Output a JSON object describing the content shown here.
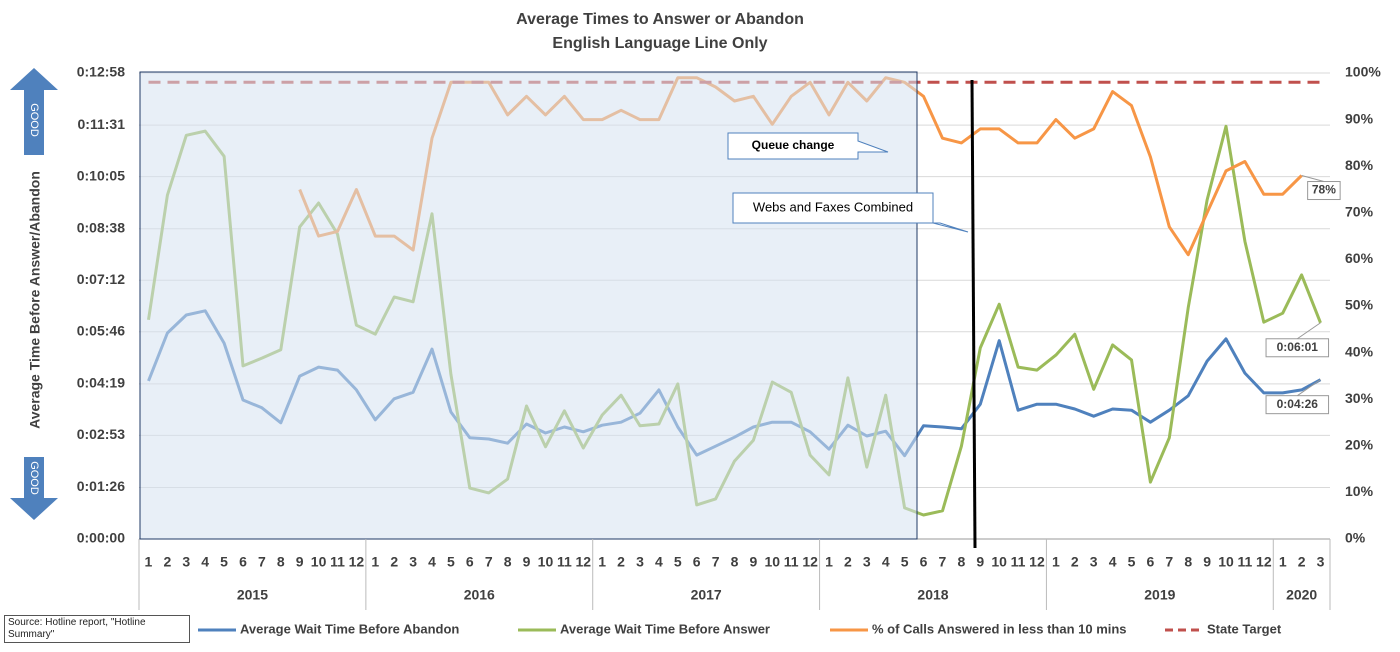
{
  "chart_data": {
    "type": "line",
    "title": "Average Times to Answer or Abandon",
    "subtitle": "English Language Line Only",
    "y_label": "Average Time Before Answer/Abandon",
    "indicator_labels": [
      "GOOD",
      "GOOD"
    ],
    "annotations": [
      "Queue change",
      "Webs and Faxes Combined"
    ],
    "source": "Source: Hotline report, \"Hotline Summary\"",
    "categories": [
      "1",
      "2",
      "3",
      "4",
      "5",
      "6",
      "7",
      "8",
      "9",
      "10",
      "11",
      "12",
      "1",
      "2",
      "3",
      "4",
      "5",
      "6",
      "7",
      "8",
      "9",
      "10",
      "11",
      "12",
      "1",
      "2",
      "3",
      "4",
      "5",
      "6",
      "7",
      "8",
      "9",
      "10",
      "11",
      "12",
      "1",
      "2",
      "3",
      "4",
      "5",
      "6",
      "7",
      "8",
      "9",
      "10",
      "11",
      "12",
      "1",
      "2",
      "3",
      "4",
      "5",
      "6",
      "7",
      "8",
      "9",
      "10",
      "11",
      "12",
      "1",
      "2",
      "3"
    ],
    "year_groups": [
      {
        "label": "2015",
        "span": 12
      },
      {
        "label": "2016",
        "span": 12
      },
      {
        "label": "2017",
        "span": 12
      },
      {
        "label": "2018",
        "span": 12
      },
      {
        "label": "2019",
        "span": 12
      },
      {
        "label": "2020",
        "span": 3
      }
    ],
    "ylim": [
      0,
      778
    ],
    "yticks": [
      {
        "value": 0,
        "label": "0:00:00"
      },
      {
        "value": 86,
        "label": "0:01:26"
      },
      {
        "value": 173,
        "label": "0:02:53"
      },
      {
        "value": 259,
        "label": "0:04:19"
      },
      {
        "value": 346,
        "label": "0:05:46"
      },
      {
        "value": 432,
        "label": "0:07:12"
      },
      {
        "value": 518,
        "label": "0:08:38"
      },
      {
        "value": 605,
        "label": "0:10:05"
      },
      {
        "value": 691,
        "label": "0:11:31"
      },
      {
        "value": 778,
        "label": "0:12:58"
      }
    ],
    "y2lim": [
      0,
      100
    ],
    "y2ticks": [
      {
        "value": 0,
        "label": "0%"
      },
      {
        "value": 10,
        "label": "10%"
      },
      {
        "value": 20,
        "label": "20%"
      },
      {
        "value": 30,
        "label": "30%"
      },
      {
        "value": 40,
        "label": "40%"
      },
      {
        "value": 50,
        "label": "50%"
      },
      {
        "value": 60,
        "label": "60%"
      },
      {
        "value": 70,
        "label": "70%"
      },
      {
        "value": 80,
        "label": "80%"
      },
      {
        "value": 90,
        "label": "90%"
      },
      {
        "value": 100,
        "label": "100%"
      }
    ],
    "grid": true,
    "legend": "bottom",
    "series": [
      {
        "name": "Average Wait Time Before Abandon",
        "color": "#4f81bd",
        "values": [
          264,
          344,
          374,
          381,
          327,
          232,
          219,
          194,
          272,
          287,
          282,
          249,
          199,
          234,
          245,
          317,
          212,
          169,
          167,
          160,
          192,
          177,
          187,
          179,
          190,
          195,
          210,
          249,
          187,
          140,
          155,
          170,
          187,
          195,
          195,
          179,
          150,
          190,
          172,
          180,
          139,
          189,
          187,
          184,
          225,
          331,
          215,
          225,
          225,
          217,
          205,
          217,
          215,
          195,
          215,
          239,
          297,
          334,
          277,
          244,
          244,
          249,
          266
        ],
        "value_labels": [
          null,
          null,
          null,
          null,
          null,
          null,
          null,
          null,
          null,
          null,
          null,
          null,
          null,
          null,
          null,
          null,
          null,
          null,
          null,
          null,
          null,
          null,
          null,
          null,
          null,
          null,
          null,
          null,
          null,
          null,
          null,
          null,
          null,
          null,
          null,
          null,
          null,
          null,
          null,
          null,
          null,
          null,
          null,
          null,
          null,
          null,
          null,
          null,
          null,
          null,
          null,
          null,
          null,
          null,
          null,
          null,
          null,
          null,
          null,
          null,
          null,
          null,
          "0:04:26"
        ]
      },
      {
        "name": "Average Wait Time Before Answer",
        "color": "#9bbb59",
        "values": [
          366,
          574,
          674,
          681,
          639,
          289,
          302,
          316,
          521,
          561,
          509,
          357,
          342,
          404,
          396,
          543,
          275,
          85,
          77,
          100,
          222,
          154,
          214,
          152,
          207,
          240,
          189,
          192,
          259,
          57,
          67,
          130,
          165,
          262,
          245,
          140,
          107,
          269,
          120,
          240,
          52,
          40,
          47,
          155,
          319,
          392,
          287,
          282,
          307,
          342,
          250,
          324,
          299,
          95,
          169,
          386,
          566,
          689,
          497,
          362,
          377,
          441,
          361
        ],
        "value_labels": [
          null,
          null,
          null,
          null,
          null,
          null,
          null,
          null,
          null,
          null,
          null,
          null,
          null,
          null,
          null,
          null,
          null,
          null,
          null,
          null,
          null,
          null,
          null,
          null,
          null,
          null,
          null,
          null,
          null,
          null,
          null,
          null,
          null,
          null,
          null,
          null,
          null,
          null,
          null,
          null,
          null,
          null,
          null,
          null,
          null,
          null,
          null,
          null,
          null,
          null,
          null,
          null,
          null,
          null,
          null,
          null,
          null,
          null,
          null,
          null,
          null,
          null,
          "0:06:01"
        ]
      },
      {
        "name": "% of Calls Answered in less than 10 mins",
        "color": "#f79646",
        "axis": "y2",
        "values": [
          null,
          null,
          null,
          null,
          null,
          null,
          null,
          null,
          75,
          65,
          66,
          75,
          65,
          65,
          62,
          86,
          98,
          98,
          98,
          91,
          95,
          91,
          95,
          90,
          90,
          92,
          90,
          90,
          99,
          99,
          97,
          94,
          95,
          89,
          95,
          98,
          91,
          98,
          94,
          99,
          98,
          95,
          86,
          85,
          88,
          88,
          85,
          85,
          90,
          86,
          88,
          96,
          93,
          82,
          67,
          61,
          70,
          79,
          81,
          74,
          74,
          78,
          null
        ],
        "value_labels": [
          null,
          null,
          null,
          null,
          null,
          null,
          null,
          null,
          null,
          null,
          null,
          null,
          null,
          null,
          null,
          null,
          null,
          null,
          null,
          null,
          null,
          null,
          null,
          null,
          null,
          null,
          null,
          null,
          null,
          null,
          null,
          null,
          null,
          null,
          null,
          null,
          null,
          null,
          null,
          null,
          null,
          null,
          null,
          null,
          null,
          null,
          null,
          null,
          null,
          null,
          null,
          null,
          null,
          null,
          null,
          null,
          null,
          null,
          null,
          null,
          null,
          "78%",
          null
        ]
      },
      {
        "name": "State Target",
        "color": "#c0504d",
        "axis": "y2",
        "dashed": true,
        "values": [
          98,
          98,
          98,
          98,
          98,
          98,
          98,
          98,
          98,
          98,
          98,
          98,
          98,
          98,
          98,
          98,
          98,
          98,
          98,
          98,
          98,
          98,
          98,
          98,
          98,
          98,
          98,
          98,
          98,
          98,
          98,
          98,
          98,
          98,
          98,
          98,
          98,
          98,
          98,
          98,
          98,
          98,
          98,
          98,
          98,
          98,
          98,
          98,
          98,
          98,
          98,
          98,
          98,
          98,
          98,
          98,
          98,
          98,
          98,
          98,
          98,
          98,
          98
        ]
      }
    ]
  }
}
